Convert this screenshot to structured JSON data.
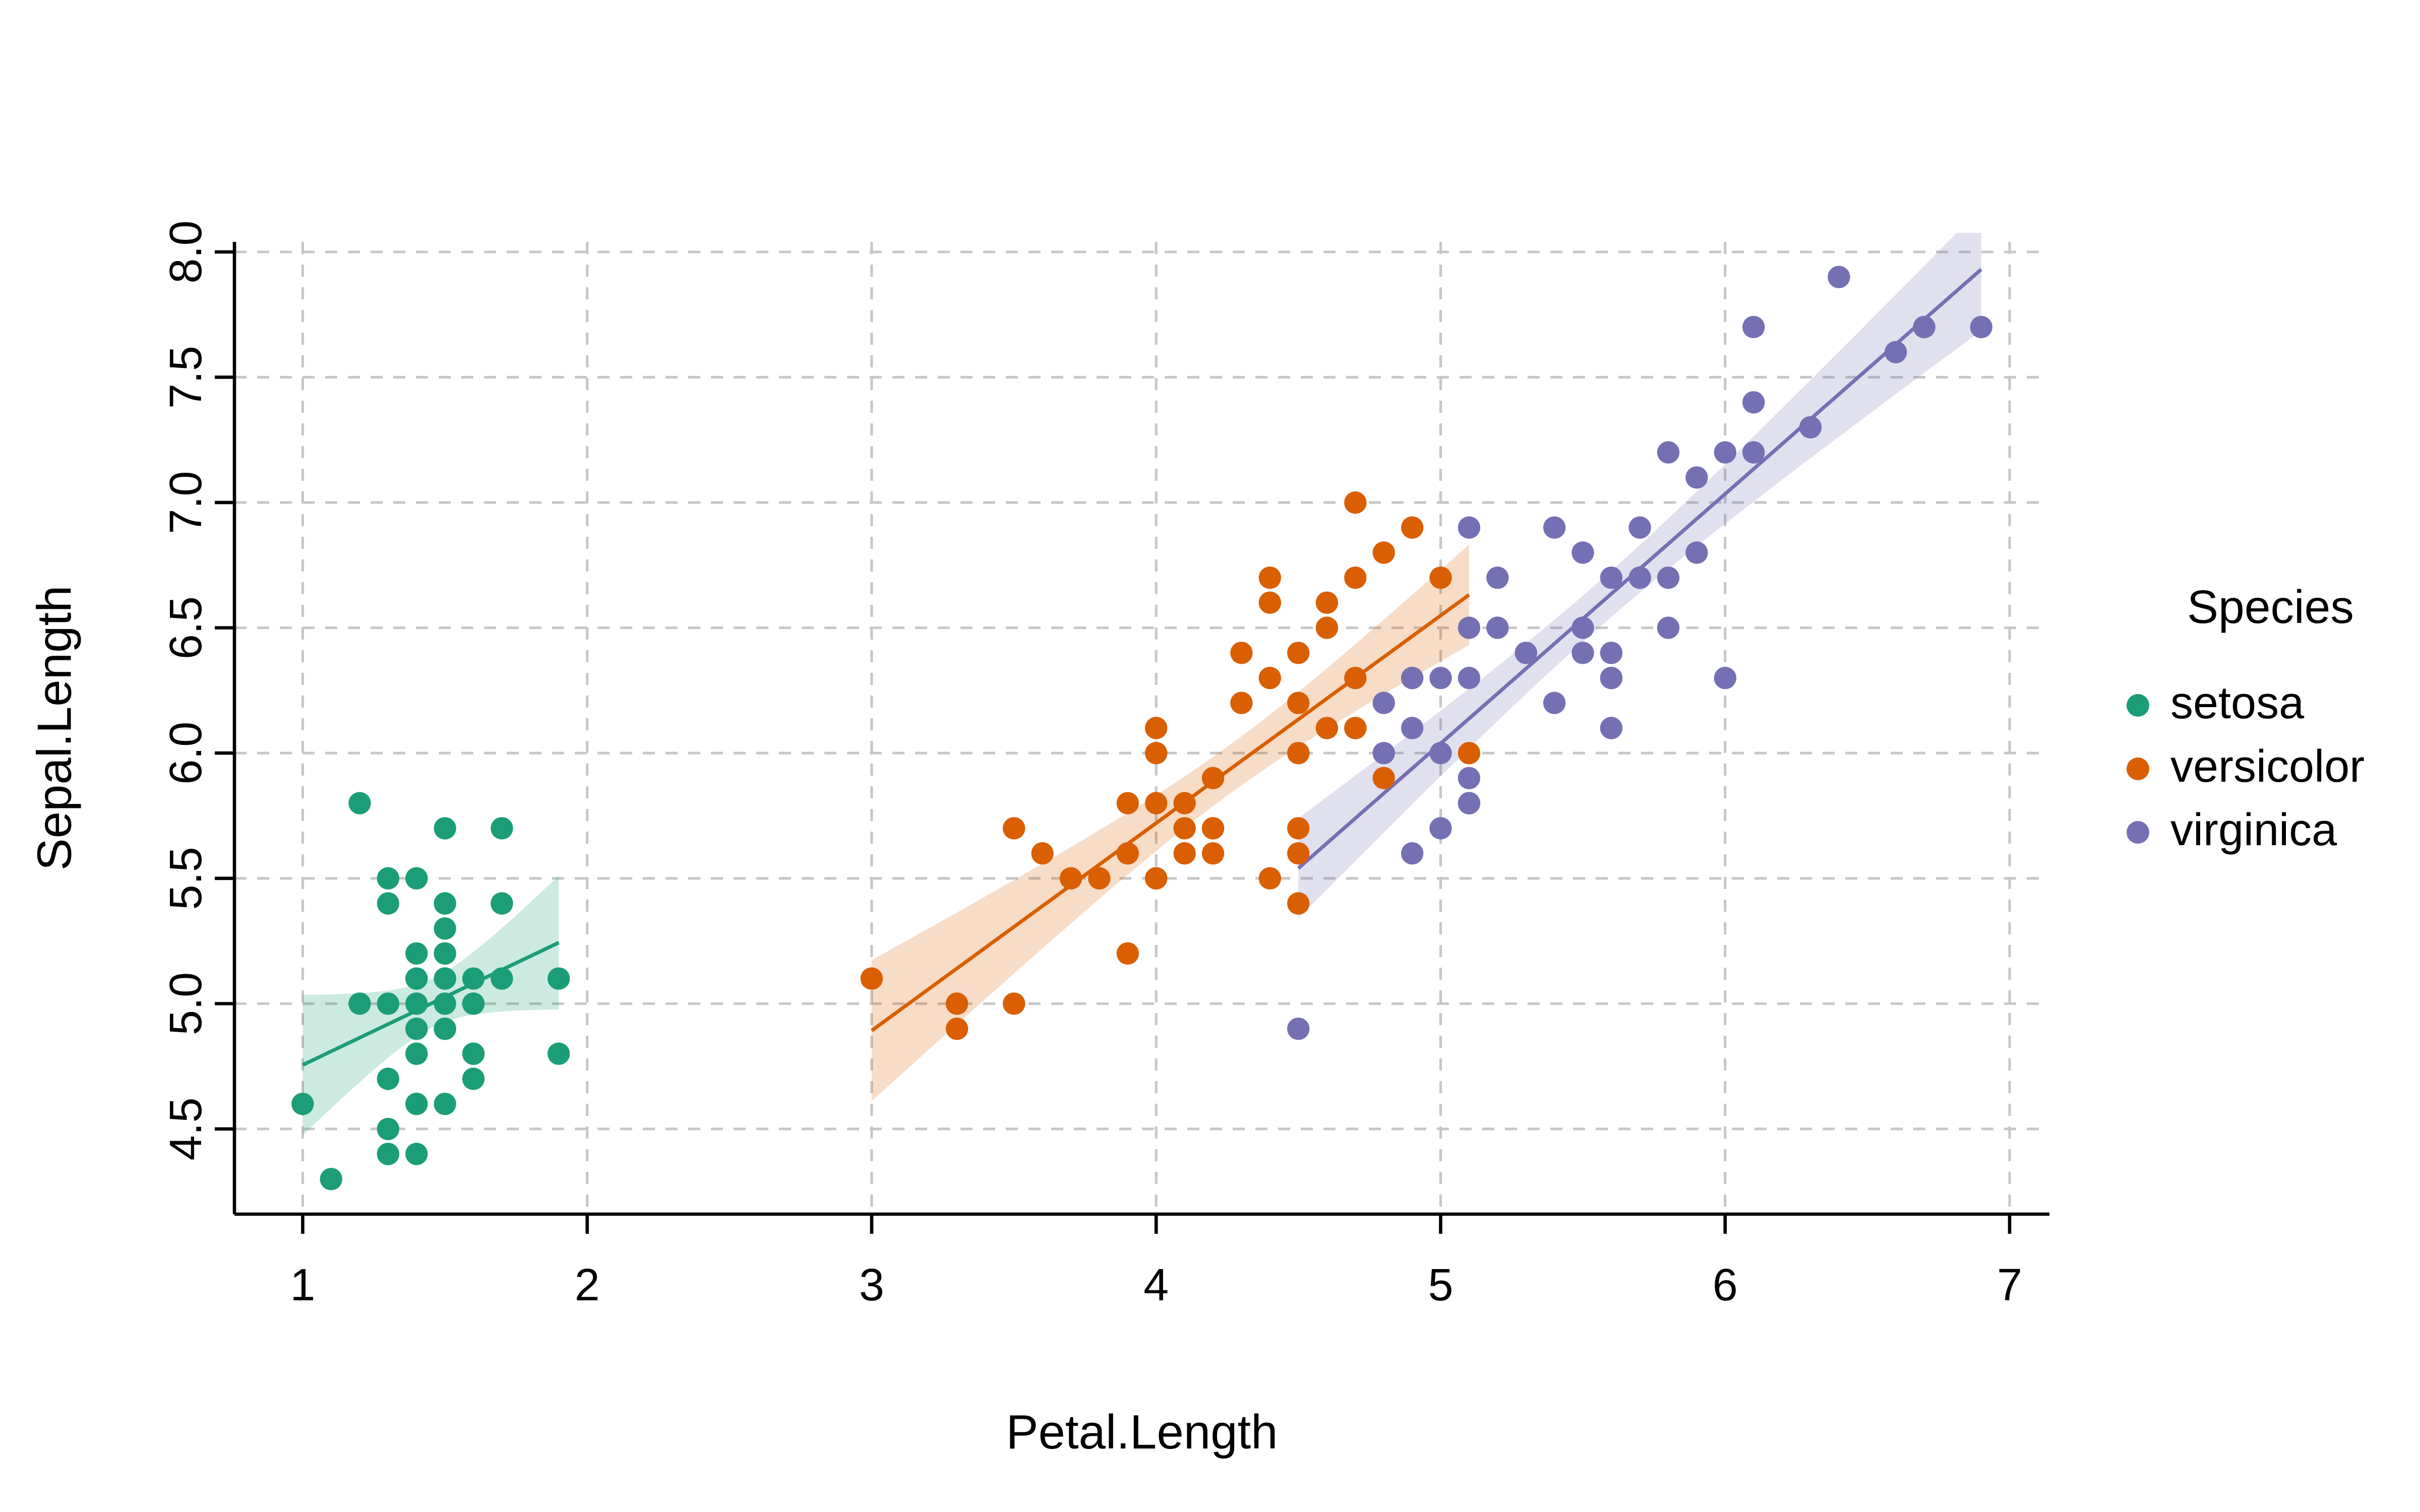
{
  "chart_data": {
    "type": "scatter",
    "title": "",
    "xlabel": "Petal.Length",
    "ylabel": "Sepal.Length",
    "xlim": [
      0.76,
      7.14
    ],
    "ylim": [
      4.16,
      8.04
    ],
    "x_ticks": [
      1,
      2,
      3,
      4,
      5,
      6,
      7
    ],
    "x_tick_labels": [
      "1",
      "2",
      "3",
      "4",
      "5",
      "6",
      "7"
    ],
    "y_ticks": [
      4.5,
      5.0,
      5.5,
      6.0,
      6.5,
      7.0,
      7.5,
      8.0
    ],
    "y_tick_labels": [
      "4.5",
      "5.0",
      "5.5",
      "6.0",
      "6.5",
      "7.0",
      "7.5",
      "8.0"
    ],
    "grid": "dashed",
    "trend": "linear_regression_with_95ci",
    "legend": {
      "title": "Species",
      "position": "right"
    },
    "colors": {
      "grid": "#c6c6c6",
      "axis": "#000000"
    },
    "series": [
      {
        "name": "setosa",
        "color": "#1b9e77",
        "points": [
          [
            1.4,
            5.1
          ],
          [
            1.4,
            4.9
          ],
          [
            1.3,
            4.7
          ],
          [
            1.5,
            4.6
          ],
          [
            1.4,
            5.0
          ],
          [
            1.7,
            5.4
          ],
          [
            1.4,
            4.6
          ],
          [
            1.5,
            5.0
          ],
          [
            1.4,
            4.4
          ],
          [
            1.5,
            4.9
          ],
          [
            1.5,
            5.4
          ],
          [
            1.6,
            4.8
          ],
          [
            1.4,
            4.8
          ],
          [
            1.1,
            4.3
          ],
          [
            1.2,
            5.8
          ],
          [
            1.5,
            5.7
          ],
          [
            1.3,
            5.4
          ],
          [
            1.4,
            5.1
          ],
          [
            1.7,
            5.7
          ],
          [
            1.5,
            5.1
          ],
          [
            1.7,
            5.4
          ],
          [
            1.5,
            5.1
          ],
          [
            1.0,
            4.6
          ],
          [
            1.7,
            5.1
          ],
          [
            1.9,
            4.8
          ],
          [
            1.6,
            5.0
          ],
          [
            1.6,
            5.0
          ],
          [
            1.5,
            5.2
          ],
          [
            1.4,
            5.2
          ],
          [
            1.6,
            4.7
          ],
          [
            1.6,
            4.8
          ],
          [
            1.5,
            5.4
          ],
          [
            1.5,
            5.2
          ],
          [
            1.4,
            5.5
          ],
          [
            1.5,
            4.9
          ],
          [
            1.2,
            5.0
          ],
          [
            1.3,
            5.5
          ],
          [
            1.4,
            4.9
          ],
          [
            1.3,
            4.4
          ],
          [
            1.5,
            5.1
          ],
          [
            1.3,
            5.0
          ],
          [
            1.3,
            4.5
          ],
          [
            1.3,
            4.4
          ],
          [
            1.6,
            5.0
          ],
          [
            1.9,
            5.1
          ],
          [
            1.4,
            4.8
          ],
          [
            1.6,
            5.1
          ],
          [
            1.4,
            4.6
          ],
          [
            1.5,
            5.3
          ],
          [
            1.4,
            5.0
          ]
        ]
      },
      {
        "name": "versicolor",
        "color": "#d95f02",
        "points": [
          [
            4.7,
            7.0
          ],
          [
            4.5,
            6.4
          ],
          [
            4.9,
            6.9
          ],
          [
            4.0,
            5.5
          ],
          [
            4.6,
            6.5
          ],
          [
            4.5,
            5.7
          ],
          [
            4.7,
            6.3
          ],
          [
            3.3,
            4.9
          ],
          [
            4.6,
            6.6
          ],
          [
            3.9,
            5.2
          ],
          [
            3.5,
            5.0
          ],
          [
            4.2,
            5.9
          ],
          [
            4.0,
            6.0
          ],
          [
            4.7,
            6.1
          ],
          [
            3.6,
            5.6
          ],
          [
            4.4,
            6.7
          ],
          [
            4.5,
            5.6
          ],
          [
            4.1,
            5.8
          ],
          [
            4.5,
            6.2
          ],
          [
            3.9,
            5.6
          ],
          [
            4.8,
            5.9
          ],
          [
            4.0,
            6.1
          ],
          [
            4.9,
            6.3
          ],
          [
            4.7,
            6.1
          ],
          [
            4.3,
            6.4
          ],
          [
            4.4,
            6.6
          ],
          [
            4.8,
            6.8
          ],
          [
            5.0,
            6.7
          ],
          [
            4.5,
            6.0
          ],
          [
            3.5,
            5.7
          ],
          [
            3.8,
            5.5
          ],
          [
            3.7,
            5.5
          ],
          [
            3.9,
            5.8
          ],
          [
            5.1,
            6.0
          ],
          [
            4.5,
            5.4
          ],
          [
            4.5,
            6.0
          ],
          [
            4.7,
            6.7
          ],
          [
            4.4,
            6.3
          ],
          [
            4.1,
            5.6
          ],
          [
            4.0,
            5.5
          ],
          [
            4.4,
            5.5
          ],
          [
            4.6,
            6.1
          ],
          [
            4.0,
            5.8
          ],
          [
            3.3,
            5.0
          ],
          [
            4.2,
            5.6
          ],
          [
            4.2,
            5.7
          ],
          [
            4.2,
            5.7
          ],
          [
            4.3,
            6.2
          ],
          [
            3.0,
            5.1
          ],
          [
            4.1,
            5.7
          ]
        ]
      },
      {
        "name": "virginica",
        "color": "#7570b3",
        "points": [
          [
            6.0,
            6.3
          ],
          [
            5.1,
            5.8
          ],
          [
            5.9,
            7.1
          ],
          [
            5.6,
            6.3
          ],
          [
            5.8,
            6.5
          ],
          [
            6.6,
            7.6
          ],
          [
            4.5,
            4.9
          ],
          [
            6.3,
            7.3
          ],
          [
            5.8,
            6.7
          ],
          [
            6.1,
            7.2
          ],
          [
            5.1,
            6.5
          ],
          [
            5.3,
            6.4
          ],
          [
            5.5,
            6.8
          ],
          [
            5.0,
            5.7
          ],
          [
            5.1,
            5.8
          ],
          [
            5.3,
            6.4
          ],
          [
            5.5,
            6.5
          ],
          [
            6.7,
            7.7
          ],
          [
            6.9,
            7.7
          ],
          [
            5.0,
            6.0
          ],
          [
            5.7,
            6.9
          ],
          [
            4.9,
            5.6
          ],
          [
            6.7,
            7.7
          ],
          [
            4.9,
            6.3
          ],
          [
            5.7,
            6.7
          ],
          [
            6.0,
            7.2
          ],
          [
            4.8,
            6.2
          ],
          [
            4.9,
            6.1
          ],
          [
            5.6,
            6.4
          ],
          [
            5.8,
            7.2
          ],
          [
            6.1,
            7.4
          ],
          [
            6.4,
            7.9
          ],
          [
            5.6,
            6.4
          ],
          [
            5.1,
            6.3
          ],
          [
            5.6,
            6.1
          ],
          [
            6.1,
            7.7
          ],
          [
            5.6,
            6.3
          ],
          [
            5.5,
            6.4
          ],
          [
            4.8,
            6.0
          ],
          [
            5.4,
            6.9
          ],
          [
            5.6,
            6.7
          ],
          [
            5.1,
            6.9
          ],
          [
            5.1,
            5.8
          ],
          [
            5.9,
            6.8
          ],
          [
            5.7,
            6.7
          ],
          [
            5.2,
            6.7
          ],
          [
            5.0,
            6.3
          ],
          [
            5.2,
            6.5
          ],
          [
            5.4,
            6.2
          ],
          [
            5.1,
            5.9
          ]
        ]
      }
    ]
  }
}
